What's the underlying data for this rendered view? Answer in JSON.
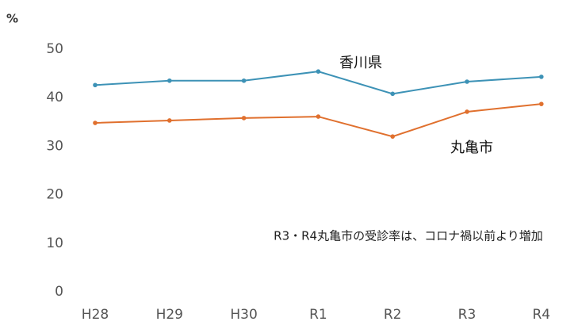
{
  "chart_data": {
    "type": "line",
    "y_label": "%",
    "categories": [
      "H28",
      "H29",
      "H30",
      "R1",
      "R2",
      "R3",
      "R4"
    ],
    "series": [
      {
        "name": "香川県",
        "color": "#3d92b6",
        "values": [
          42.6,
          43.5,
          43.5,
          45.4,
          40.8,
          43.3,
          44.3
        ]
      },
      {
        "name": "丸亀市",
        "color": "#e0702e",
        "values": [
          34.8,
          35.3,
          35.8,
          36.1,
          32.0,
          37.1,
          38.7
        ]
      }
    ],
    "annotation": "R3・R4丸亀市の受診率は、コロナ禍以前より増加",
    "ylim": [
      0,
      50
    ],
    "yticks": [
      0,
      10,
      20,
      30,
      40,
      50
    ],
    "grid": false
  }
}
